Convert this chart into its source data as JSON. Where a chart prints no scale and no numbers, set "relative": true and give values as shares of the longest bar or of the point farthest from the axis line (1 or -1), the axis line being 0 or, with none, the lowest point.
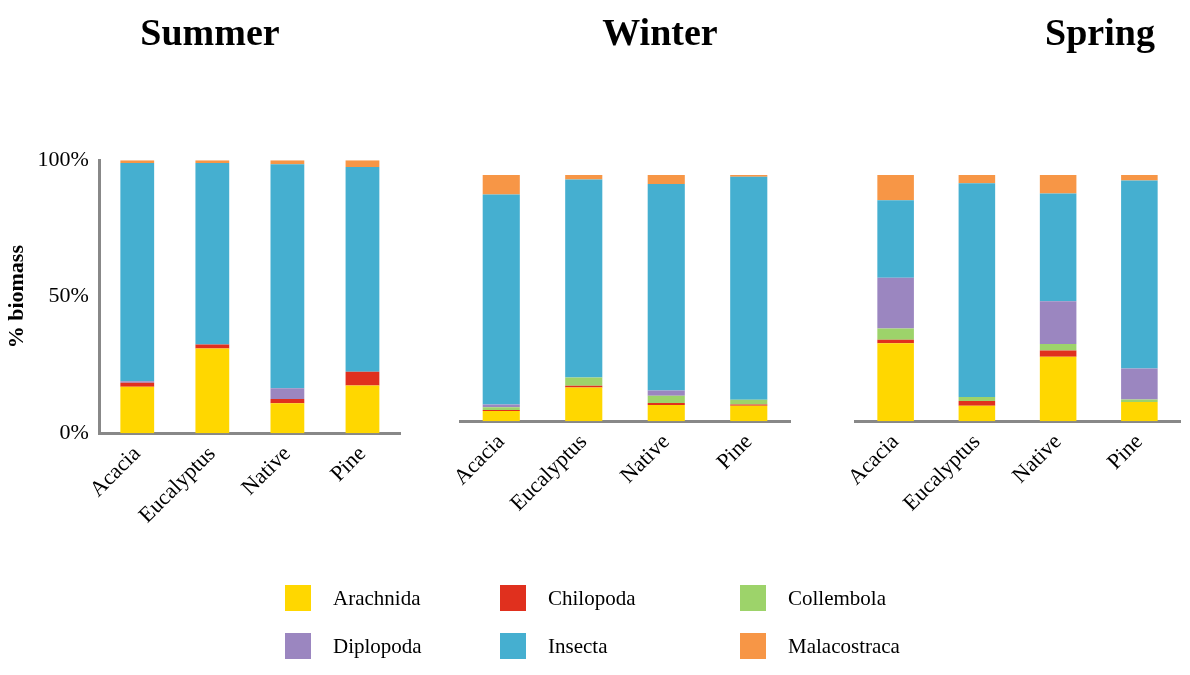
{
  "chart_data": [
    {
      "type": "bar",
      "title": "Summer",
      "ylabel": "% biomass",
      "stacked": true,
      "categories": [
        "Acacia",
        "Eucalyptus",
        "Native",
        "Pine"
      ],
      "ylim": [
        0,
        100
      ],
      "yticks": [
        {
          "value": 0,
          "label": "0%"
        },
        {
          "value": 50,
          "label": "50%"
        },
        {
          "value": 100,
          "label": "100%"
        }
      ],
      "legend": "bottom",
      "series": [
        {
          "name": "Arachnida",
          "color": "#ffd700",
          "values": [
            17,
            31,
            11,
            17.5
          ]
        },
        {
          "name": "Chilopoda",
          "color": "#e0301e",
          "values": [
            1.5,
            1.5,
            1.5,
            5
          ]
        },
        {
          "name": "Collembola",
          "color": "#9dd36a",
          "values": [
            0,
            0,
            0,
            0
          ]
        },
        {
          "name": "Diplopoda",
          "color": "#9b86c0",
          "values": [
            0.5,
            0,
            4,
            0
          ]
        },
        {
          "name": "Insecta",
          "color": "#45afd0",
          "values": [
            80,
            66.5,
            82,
            75
          ]
        },
        {
          "name": "Malacostraca",
          "color": "#f79646",
          "values": [
            1,
            1,
            1.5,
            2.5
          ]
        }
      ]
    },
    {
      "type": "bar",
      "title": "Winter",
      "stacked": true,
      "relative": true,
      "categories": [
        "Acacia",
        "Eucalyptus",
        "Native",
        "Pine"
      ],
      "series": [
        {
          "color": "#ffd700",
          "values": [
            0.041,
            0.137,
            0.066,
            0.063
          ]
        },
        {
          "color": "#e0301e",
          "values": [
            0.005,
            0.007,
            0.008,
            0.005
          ]
        },
        {
          "color": "#9dd36a",
          "values": [
            0.011,
            0.034,
            0.029,
            0.019
          ]
        },
        {
          "color": "#9b86c0",
          "values": [
            0.011,
            0,
            0.022,
            0
          ]
        },
        {
          "color": "#45afd0",
          "values": [
            0.853,
            0.804,
            0.838,
            0.906
          ]
        },
        {
          "color": "#f79646",
          "values": [
            0.079,
            0.018,
            0.037,
            0.007
          ]
        }
      ]
    },
    {
      "type": "bar",
      "title": "Spring",
      "stacked": true,
      "relative": true,
      "categories": [
        "Acacia",
        "Eucalyptus",
        "Native",
        "Pine"
      ],
      "series": [
        {
          "color": "#ffd700",
          "values": [
            0.317,
            0.063,
            0.262,
            0.078
          ]
        },
        {
          "color": "#e0301e",
          "values": [
            0.014,
            0.019,
            0.025,
            0
          ]
        },
        {
          "color": "#9dd36a",
          "values": [
            0.046,
            0.016,
            0.027,
            0.01
          ]
        },
        {
          "color": "#9b86c0",
          "values": [
            0.206,
            0,
            0.173,
            0.126
          ]
        },
        {
          "color": "#45afd0",
          "values": [
            0.314,
            0.869,
            0.438,
            0.764
          ]
        },
        {
          "color": "#f79646",
          "values": [
            0.103,
            0.033,
            0.075,
            0.022
          ]
        }
      ]
    }
  ]
}
